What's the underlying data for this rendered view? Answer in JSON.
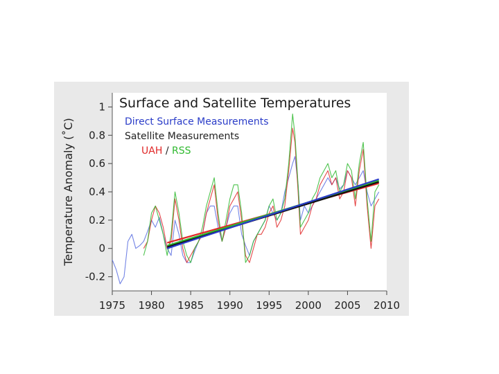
{
  "chart_data": {
    "type": "line",
    "title": "Surface and Satellite Temperatures",
    "xlabel": "",
    "ylabel": "Temperature Anomaly (˚C)",
    "xlim": [
      1975,
      2010
    ],
    "ylim": [
      -0.3,
      1.1
    ],
    "xticks": [
      1975,
      1980,
      1985,
      1990,
      1995,
      2000,
      2005,
      2010
    ],
    "yticks": [
      "-0.2",
      "0",
      "0.2",
      "0.4",
      "0.6",
      "0.8",
      "1"
    ],
    "ytick_values": [
      -0.2,
      0,
      0.2,
      0.4,
      0.6,
      0.8,
      1
    ],
    "legend": {
      "surface_label": "Direct Surface Measurements",
      "satellite_heading": "Satellite Measurements",
      "uah_label": "UAH",
      "separator": "/",
      "rss_label": "RSS"
    },
    "colors": {
      "surface": "#5a6ee0",
      "uah": "#e02828",
      "rss": "#2fb92f",
      "trend_black": "#111111",
      "trend_blue": "#2a3cc8",
      "plot_bg": "#ffffff",
      "figure_bg": "#e9e9e9"
    },
    "series": [
      {
        "name": "Direct Surface Measurements",
        "x": [
          1975.0,
          1975.5,
          1976.0,
          1976.5,
          1977.0,
          1977.5,
          1978.0,
          1978.5,
          1979.0,
          1979.5,
          1980.0,
          1980.5,
          1981.0,
          1981.5,
          1982.0,
          1982.5,
          1983.0,
          1983.5,
          1984.0,
          1984.5,
          1985.0,
          1985.5,
          1986.0,
          1986.5,
          1987.0,
          1987.5,
          1988.0,
          1988.5,
          1989.0,
          1989.5,
          1990.0,
          1990.5,
          1991.0,
          1991.5,
          1992.0,
          1992.5,
          1993.0,
          1993.5,
          1994.0,
          1994.5,
          1995.0,
          1995.5,
          1996.0,
          1996.5,
          1997.0,
          1997.5,
          1998.0,
          1998.3,
          1998.7,
          1999.0,
          1999.5,
          2000.0,
          2000.5,
          2001.0,
          2001.5,
          2002.0,
          2002.5,
          2003.0,
          2003.5,
          2004.0,
          2004.5,
          2005.0,
          2005.5,
          2006.0,
          2006.5,
          2007.0,
          2007.5,
          2008.0,
          2008.5,
          2009.0
        ],
        "values": [
          -0.08,
          -0.15,
          -0.25,
          -0.2,
          0.05,
          0.1,
          0.0,
          0.02,
          0.05,
          0.12,
          0.2,
          0.15,
          0.22,
          0.1,
          0.0,
          -0.05,
          0.2,
          0.1,
          -0.05,
          -0.1,
          -0.1,
          -0.02,
          0.05,
          0.1,
          0.25,
          0.3,
          0.3,
          0.15,
          0.05,
          0.15,
          0.25,
          0.3,
          0.3,
          0.1,
          0.02,
          -0.05,
          0.05,
          0.1,
          0.15,
          0.2,
          0.3,
          0.25,
          0.2,
          0.25,
          0.4,
          0.5,
          0.6,
          0.65,
          0.45,
          0.2,
          0.3,
          0.25,
          0.3,
          0.35,
          0.4,
          0.45,
          0.5,
          0.45,
          0.5,
          0.42,
          0.45,
          0.55,
          0.5,
          0.45,
          0.5,
          0.55,
          0.4,
          0.3,
          0.35,
          0.4
        ]
      },
      {
        "name": "UAH",
        "x": [
          1979.0,
          1979.5,
          1980.0,
          1980.5,
          1981.0,
          1981.5,
          1982.0,
          1982.5,
          1983.0,
          1983.5,
          1984.0,
          1984.5,
          1985.0,
          1985.5,
          1986.0,
          1986.5,
          1987.0,
          1987.5,
          1988.0,
          1988.5,
          1989.0,
          1989.5,
          1990.0,
          1990.5,
          1991.0,
          1991.5,
          1992.0,
          1992.5,
          1993.0,
          1993.5,
          1994.0,
          1994.5,
          1995.0,
          1995.5,
          1996.0,
          1996.5,
          1997.0,
          1997.5,
          1998.0,
          1998.3,
          1998.7,
          1999.0,
          1999.5,
          2000.0,
          2000.5,
          2001.0,
          2001.5,
          2002.0,
          2002.5,
          2003.0,
          2003.5,
          2004.0,
          2004.5,
          2005.0,
          2005.5,
          2006.0,
          2006.5,
          2007.0,
          2007.5,
          2008.0,
          2008.5,
          2009.0
        ],
        "values": [
          0.0,
          0.05,
          0.2,
          0.3,
          0.25,
          0.15,
          0.0,
          0.05,
          0.35,
          0.2,
          0.0,
          -0.1,
          -0.05,
          0.0,
          0.05,
          0.1,
          0.25,
          0.35,
          0.45,
          0.2,
          0.05,
          0.15,
          0.3,
          0.35,
          0.4,
          0.2,
          -0.05,
          -0.1,
          0.0,
          0.1,
          0.1,
          0.15,
          0.25,
          0.3,
          0.15,
          0.2,
          0.3,
          0.55,
          0.85,
          0.75,
          0.4,
          0.1,
          0.15,
          0.2,
          0.3,
          0.35,
          0.45,
          0.5,
          0.55,
          0.45,
          0.5,
          0.35,
          0.4,
          0.55,
          0.5,
          0.3,
          0.55,
          0.7,
          0.3,
          0.0,
          0.3,
          0.35
        ]
      },
      {
        "name": "RSS",
        "x": [
          1979.0,
          1979.5,
          1980.0,
          1980.5,
          1981.0,
          1981.5,
          1982.0,
          1982.5,
          1983.0,
          1983.5,
          1984.0,
          1984.5,
          1985.0,
          1985.5,
          1986.0,
          1986.5,
          1987.0,
          1987.5,
          1988.0,
          1988.5,
          1989.0,
          1989.5,
          1990.0,
          1990.5,
          1991.0,
          1991.5,
          1992.0,
          1992.5,
          1993.0,
          1993.5,
          1994.0,
          1994.5,
          1995.0,
          1995.5,
          1996.0,
          1996.5,
          1997.0,
          1997.5,
          1998.0,
          1998.3,
          1998.7,
          1999.0,
          1999.5,
          2000.0,
          2000.5,
          2001.0,
          2001.5,
          2002.0,
          2002.5,
          2003.0,
          2003.5,
          2004.0,
          2004.5,
          2005.0,
          2005.5,
          2006.0,
          2006.5,
          2007.0,
          2007.5,
          2008.0,
          2008.5,
          2009.0
        ],
        "values": [
          -0.05,
          0.05,
          0.25,
          0.3,
          0.2,
          0.1,
          -0.05,
          0.1,
          0.4,
          0.25,
          0.05,
          -0.05,
          -0.1,
          0.0,
          0.05,
          0.15,
          0.3,
          0.4,
          0.5,
          0.25,
          0.05,
          0.2,
          0.35,
          0.45,
          0.45,
          0.25,
          -0.1,
          -0.05,
          0.05,
          0.1,
          0.15,
          0.2,
          0.3,
          0.35,
          0.2,
          0.25,
          0.35,
          0.6,
          0.95,
          0.8,
          0.45,
          0.15,
          0.2,
          0.25,
          0.35,
          0.4,
          0.5,
          0.55,
          0.6,
          0.5,
          0.55,
          0.4,
          0.45,
          0.6,
          0.55,
          0.35,
          0.6,
          0.75,
          0.35,
          0.05,
          0.4,
          0.45
        ]
      }
    ],
    "trend_lines": [
      {
        "name": "UAH trend",
        "x": [
          1982,
          2009
        ],
        "values": [
          0.04,
          0.46
        ]
      },
      {
        "name": "RSS trend",
        "x": [
          1982,
          2009
        ],
        "values": [
          0.02,
          0.48
        ]
      },
      {
        "name": "Satellite trend",
        "x": [
          1982,
          2009
        ],
        "values": [
          0.01,
          0.47
        ]
      },
      {
        "name": "Surface trend",
        "x": [
          1982,
          2009
        ],
        "values": [
          0.0,
          0.49
        ]
      }
    ]
  }
}
